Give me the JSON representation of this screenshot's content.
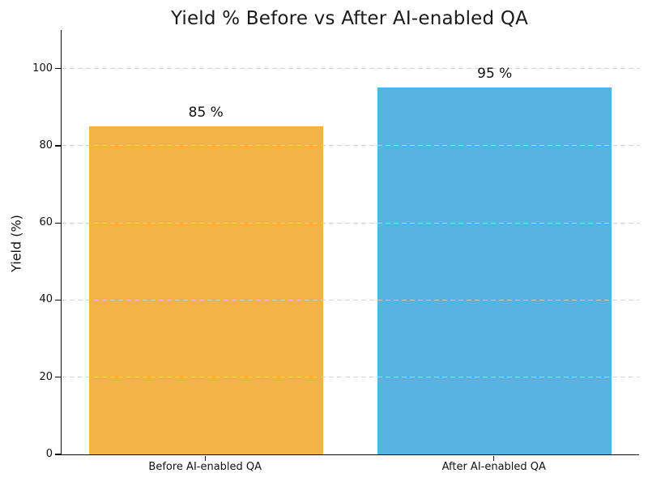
{
  "chart_data": {
    "type": "bar",
    "title": "Yield % Before vs After AI-enabled QA",
    "ylabel": "Yield (%)",
    "xlabel": "",
    "categories": [
      "Before AI-enabled QA",
      "After AI-enabled QA"
    ],
    "values": [
      85,
      95
    ],
    "value_labels": [
      "85 %",
      "95 %"
    ],
    "bar_colors": [
      "#F2B446",
      "#56B3E2"
    ],
    "ylim": [
      0,
      110
    ],
    "yticks": [
      0,
      20,
      40,
      60,
      80,
      100
    ],
    "ytick_labels": [
      "0",
      "20",
      "40",
      "60",
      "80",
      "100"
    ],
    "grid": {
      "axis": "y",
      "style": "dashed",
      "color": "#cfcfcf"
    },
    "legend": "none",
    "spine_color": "#0c0c0c",
    "text_color": "#111111"
  }
}
